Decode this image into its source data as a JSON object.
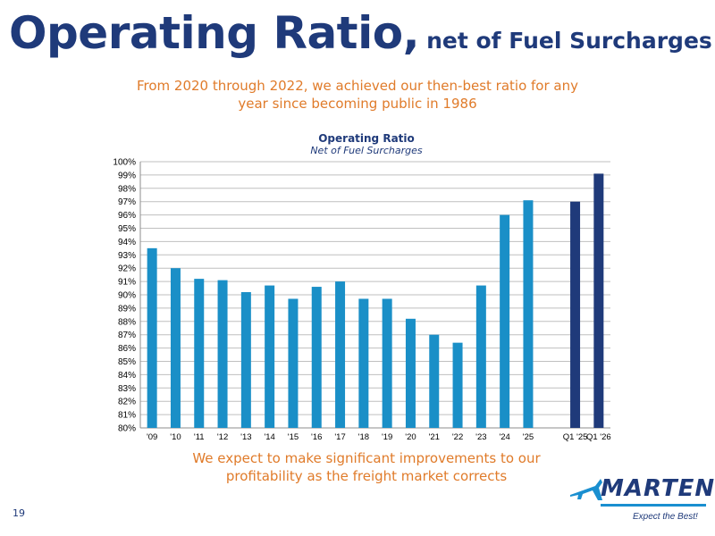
{
  "header": {
    "title_main": "Operating Ratio,",
    "title_sub": "net of Fuel Surcharges",
    "subtitle_line1": "From 2020 through 2022, we achieved our then-best ratio for any",
    "subtitle_line2": "year since becoming public in 1986"
  },
  "footer": {
    "line1": "We expect to make significant improvements to our",
    "line2": "profitability as the freight market corrects",
    "page_number": "19"
  },
  "logo": {
    "name": "MARTEN",
    "tagline": "Expect the Best!"
  },
  "colors": {
    "title": "#1f3a7a",
    "accent_orange": "#e07b2a",
    "bar_annual": "#1a8fc7",
    "bar_quarter": "#1f3a7a",
    "grid": "#bfbfbf"
  },
  "chart_data": {
    "type": "bar",
    "title": "Operating Ratio",
    "subtitle": "Net of Fuel Surcharges",
    "xlabel": "",
    "ylabel": "",
    "ylim": [
      80,
      100
    ],
    "y_ticks": [
      "80%",
      "81%",
      "82%",
      "83%",
      "84%",
      "85%",
      "86%",
      "87%",
      "88%",
      "89%",
      "90%",
      "91%",
      "92%",
      "93%",
      "94%",
      "95%",
      "96%",
      "97%",
      "98%",
      "99%",
      "100%"
    ],
    "grid": true,
    "categories": [
      "'09",
      "'10",
      "'11",
      "'12",
      "'13",
      "'14",
      "'15",
      "'16",
      "'17",
      "'18",
      "'19",
      "'20",
      "'21",
      "'22",
      "'23",
      "'24",
      "'25",
      "",
      "Q1 '25",
      "Q1 '26"
    ],
    "values": [
      93.5,
      92.0,
      91.2,
      91.1,
      90.2,
      90.7,
      89.7,
      90.6,
      91.0,
      89.7,
      89.7,
      88.2,
      87.0,
      86.4,
      90.7,
      96.0,
      97.1,
      null,
      97.0,
      99.1
    ],
    "bar_group": [
      "annual",
      "annual",
      "annual",
      "annual",
      "annual",
      "annual",
      "annual",
      "annual",
      "annual",
      "annual",
      "annual",
      "annual",
      "annual",
      "annual",
      "annual",
      "annual",
      "annual",
      "gap",
      "quarter",
      "quarter"
    ]
  }
}
